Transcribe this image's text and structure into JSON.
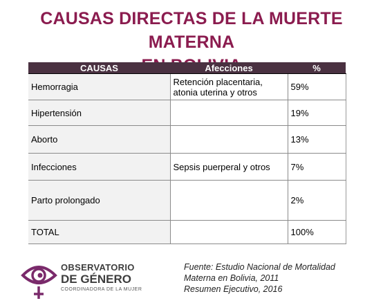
{
  "title": {
    "line1": "CAUSAS DIRECTAS DE LA MUERTE MATERNA",
    "line2": "EN BOLIVIA"
  },
  "table": {
    "headers": [
      "CAUSAS",
      "Afecciones",
      "%"
    ],
    "rows": [
      {
        "causa": "Hemorragia",
        "afecciones": "Retención placentaria, atonia uterina y otros",
        "pct": "59%"
      },
      {
        "causa": "Hipertensión",
        "afecciones": "",
        "pct": "19%"
      },
      {
        "causa": "Aborto",
        "afecciones": "",
        "pct": "13%"
      },
      {
        "causa": "Infecciones",
        "afecciones": "Sepsis puerperal y otros",
        "pct": "7%"
      },
      {
        "causa": "Parto prolongado",
        "afecciones": "",
        "pct": "2%"
      },
      {
        "causa": "TOTAL",
        "afecciones": "",
        "pct": "100%"
      }
    ]
  },
  "logo": {
    "line1": "OBSERVATORIO",
    "line2": "DE GÉNERO",
    "line3": "COORDINADORA DE LA MUJER"
  },
  "source": {
    "line1": "Fuente: Estudio Nacional de Mortalidad",
    "line2": "Materna en Bolivia, 2011",
    "line3": "Resumen Ejecutivo, 2016"
  }
}
